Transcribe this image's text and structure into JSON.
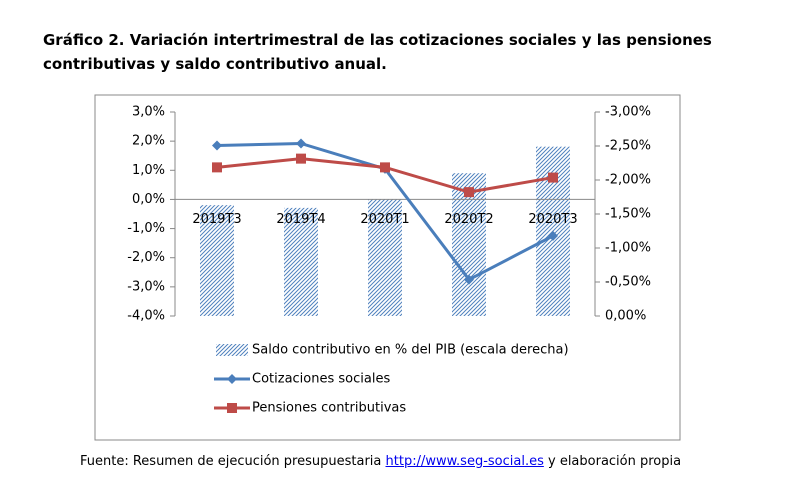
{
  "chart_data": {
    "type": "combo",
    "title": "Gráfico 2. Variación intertrimestral de las cotizaciones sociales y las pensiones contributivas y saldo contributivo anual.",
    "categories": [
      "2019T3",
      "2019T4",
      "2020T1",
      "2020T2",
      "2020T3"
    ],
    "series": [
      {
        "name": "Saldo contributivo en % del PIB (escala derecha)",
        "type": "bar",
        "axis": "y2",
        "color": "#4f81bd",
        "values": [
          -1.63,
          -1.59,
          -1.72,
          -2.1,
          -2.49
        ]
      },
      {
        "name": "Cotizaciones sociales",
        "type": "line",
        "color": "#4a7ebb",
        "values": [
          1.85,
          1.92,
          1.05,
          -2.75,
          -1.25
        ]
      },
      {
        "name": "Pensiones contributivas",
        "type": "line",
        "color": "#be4b48",
        "values": [
          1.1,
          1.4,
          1.1,
          0.25,
          0.75
        ]
      }
    ],
    "ylim": [
      -4,
      3
    ],
    "yticks": [
      {
        "value": -4,
        "label": "-4,0%"
      },
      {
        "value": -3,
        "label": "-3,0%"
      },
      {
        "value": -2,
        "label": "-2,0%"
      },
      {
        "value": -1,
        "label": "-1,0%"
      },
      {
        "value": 0,
        "label": "0,0%"
      },
      {
        "value": 1,
        "label": "1,0%"
      },
      {
        "value": 2,
        "label": "2,0%"
      },
      {
        "value": 3,
        "label": "3,0%"
      }
    ],
    "y2lim": [
      0,
      -3
    ],
    "y2ticks": [
      {
        "value": 0,
        "label": "0,00%"
      },
      {
        "value": -0.5,
        "label": "-0,50%"
      },
      {
        "value": -1,
        "label": "-1,00%"
      },
      {
        "value": -1.5,
        "label": "-1,50%"
      },
      {
        "value": -2,
        "label": "-2,00%"
      },
      {
        "value": -2.5,
        "label": "-2,50%"
      },
      {
        "value": -3,
        "label": "-3,00%"
      }
    ],
    "grid": false
  },
  "source": {
    "prefix": "Fuente: Resumen de ejecución presupuestaria ",
    "link": "http://www.seg-social.es",
    "suffix": " y elaboración propia"
  }
}
